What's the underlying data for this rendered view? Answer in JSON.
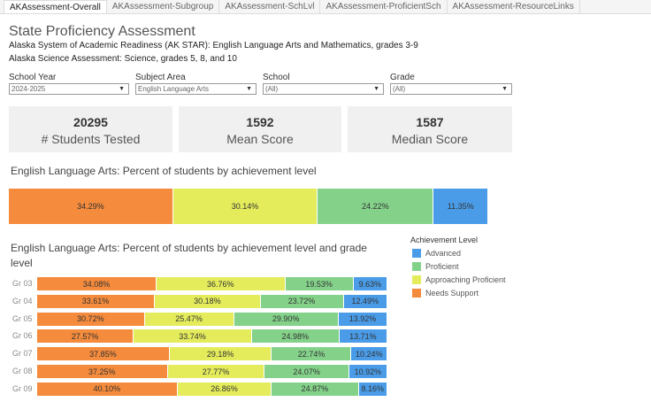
{
  "tabs": [
    "AKAssessment-Overall",
    "AKAssessment-Subgroup",
    "AKAssessment-SchLvl",
    "AKAssessment-ProficientSch",
    "AKAssessment-ResourceLinks"
  ],
  "title": "State Proficiency Assessment",
  "subtitle1": "Alaska System of Academic Readiness (AK STAR): English Language Arts and Mathematics, grades 3-9",
  "subtitle2": "Alaska Science Assessment: Science, grades 5, 8, and 10",
  "filters": [
    {
      "label": "School Year",
      "value": "2024-2025"
    },
    {
      "label": "Subject Area",
      "value": "English Language Arts"
    },
    {
      "label": "School",
      "value": "(All)"
    },
    {
      "label": "Grade",
      "value": "(All)"
    }
  ],
  "cards": [
    {
      "value": "20295",
      "label": "# Students Tested"
    },
    {
      "value": "1592",
      "label": "Mean Score"
    },
    {
      "value": "1587",
      "label": "Median Score"
    }
  ],
  "colors": {
    "Needs Support": "#f58b3c",
    "Approaching Proficient": "#e4ec5c",
    "Proficient": "#84d28a",
    "Advanced": "#4a9ce8"
  },
  "chart_data": [
    {
      "type": "bar",
      "stacked": true,
      "orientation": "horizontal",
      "title": "English Language Arts: Percent of students by achievement level",
      "series": [
        {
          "name": "Needs Support",
          "values": [
            34.29
          ]
        },
        {
          "name": "Approaching Proficient",
          "values": [
            30.14
          ]
        },
        {
          "name": "Proficient",
          "values": [
            24.22
          ]
        },
        {
          "name": "Advanced",
          "values": [
            11.35
          ]
        }
      ]
    },
    {
      "type": "bar",
      "stacked": true,
      "orientation": "horizontal",
      "title": "English Language Arts: Percent of students by achievement level and grade level",
      "categories": [
        "Gr 03",
        "Gr 04",
        "Gr 05",
        "Gr 06",
        "Gr 07",
        "Gr 08",
        "Gr 09"
      ],
      "legend_title": "Achievement Level",
      "legend": [
        "Advanced",
        "Proficient",
        "Approaching Proficient",
        "Needs Support"
      ],
      "series": [
        {
          "name": "Needs Support",
          "values": [
            34.08,
            33.61,
            30.72,
            27.57,
            37.85,
            37.25,
            40.1
          ]
        },
        {
          "name": "Approaching Proficient",
          "values": [
            36.76,
            30.18,
            25.47,
            33.74,
            29.18,
            27.77,
            26.86
          ]
        },
        {
          "name": "Proficient",
          "values": [
            19.53,
            23.72,
            29.9,
            24.98,
            22.74,
            24.07,
            24.87
          ]
        },
        {
          "name": "Advanced",
          "values": [
            9.63,
            12.49,
            13.92,
            13.71,
            10.24,
            10.92,
            8.16
          ]
        }
      ]
    }
  ]
}
